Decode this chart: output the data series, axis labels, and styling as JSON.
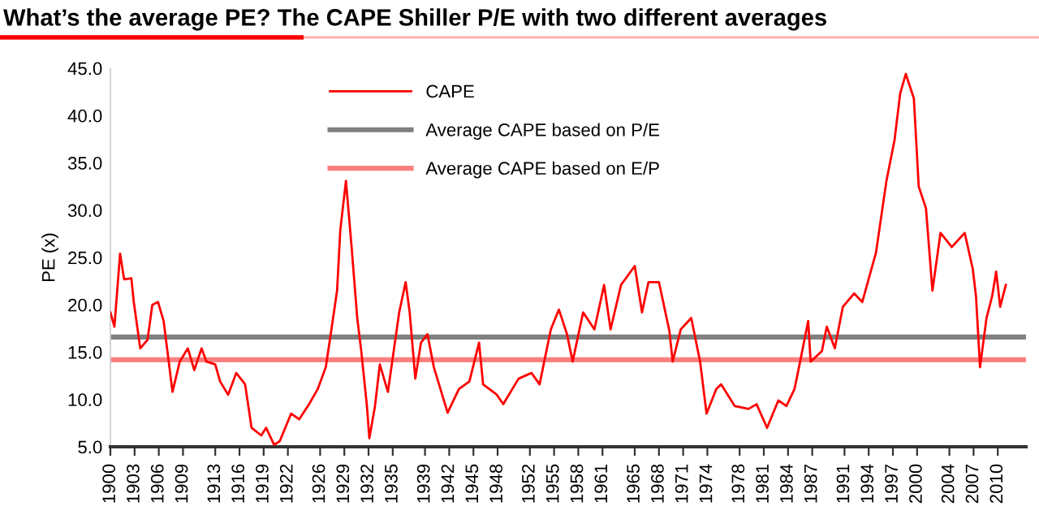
{
  "chart_data": {
    "type": "line",
    "title": "What’s the average PE? The CAPE Shiller P/E with two different averages",
    "ylabel": "PE (x)",
    "xlim": [
      1900,
      2013.5
    ],
    "xticks": [
      1900,
      1903,
      1906,
      1909,
      1913,
      1916,
      1919,
      1922,
      1926,
      1929,
      1932,
      1935,
      1939,
      1942,
      1945,
      1948,
      1952,
      1955,
      1958,
      1961,
      1965,
      1968,
      1971,
      1974,
      1978,
      1981,
      1984,
      1987,
      1991,
      1994,
      1997,
      2000,
      2004,
      2007,
      2010
    ],
    "ylim": [
      5,
      45
    ],
    "yticks": [
      {
        "value": 5,
        "label": "5.0"
      },
      {
        "value": 10,
        "label": "10.0"
      },
      {
        "value": 15,
        "label": "15.0"
      },
      {
        "value": 20,
        "label": "20.0"
      },
      {
        "value": 25,
        "label": "25.0"
      },
      {
        "value": 30,
        "label": "30.0"
      },
      {
        "value": 35,
        "label": "35.0"
      },
      {
        "value": 40,
        "label": "40.0"
      },
      {
        "value": 45,
        "label": "45.0"
      }
    ],
    "grid": false,
    "legend": "top",
    "series": [
      {
        "name": "CAPE",
        "color": "#ff0000",
        "x": [
          1900,
          1900.5,
          1901.2,
          1901.7,
          1902.6,
          1902.9,
          1903.7,
          1904.6,
          1905.2,
          1905.9,
          1906.6,
          1907.7,
          1908.6,
          1909.6,
          1910.4,
          1911.3,
          1911.9,
          1913.0,
          1913.6,
          1914.6,
          1915.6,
          1916.7,
          1917.5,
          1918.7,
          1919.3,
          1920.3,
          1921.0,
          1922.4,
          1923.4,
          1924.7,
          1925.7,
          1926.7,
          1927.4,
          1928.1,
          1928.5,
          1929.2,
          1929.9,
          1930.6,
          1931.1,
          1931.8,
          1932.1,
          1932.8,
          1933.4,
          1934.4,
          1935.8,
          1936.6,
          1937.1,
          1937.8,
          1938.5,
          1939.3,
          1940.1,
          1941.8,
          1943.2,
          1944.5,
          1945.7,
          1946.2,
          1947.9,
          1948.7,
          1950.6,
          1952.2,
          1953.2,
          1954.6,
          1955.6,
          1956.6,
          1957.3,
          1958.6,
          1960.0,
          1961.2,
          1962.0,
          1963.3,
          1965.0,
          1965.9,
          1966.7,
          1968.0,
          1969.3,
          1969.7,
          1970.7,
          1972.0,
          1973.1,
          1973.9,
          1975.1,
          1975.7,
          1977.4,
          1979.1,
          1980.1,
          1981.4,
          1982.8,
          1983.8,
          1984.8,
          1985.5,
          1986.5,
          1986.8,
          1988.2,
          1988.8,
          1989.8,
          1990.8,
          1992.2,
          1993.2,
          1994.9,
          1996.2,
          1997.2,
          1997.9,
          1998.6,
          1999.6,
          2000.2,
          2001.1,
          2001.9,
          2002.9,
          2004.3,
          2005.9,
          2006.9,
          2007.3,
          2007.8,
          2008.6,
          2009.3,
          2009.8,
          2010.3,
          2011.0
        ],
        "values": [
          19.2,
          17.7,
          25.4,
          22.7,
          22.8,
          20.3,
          15.4,
          16.3,
          20.0,
          20.3,
          18.3,
          10.8,
          14.0,
          15.4,
          13.1,
          15.4,
          14.0,
          13.7,
          11.9,
          10.5,
          12.8,
          11.6,
          7.0,
          6.2,
          7.0,
          5.2,
          5.6,
          8.5,
          7.9,
          9.6,
          11.1,
          13.4,
          17.4,
          21.5,
          27.9,
          33.1,
          26.1,
          18.6,
          15.1,
          9.3,
          5.9,
          9.3,
          13.7,
          10.8,
          19.2,
          22.4,
          19.2,
          12.2,
          16.0,
          16.9,
          13.4,
          8.6,
          11.1,
          11.9,
          16.0,
          11.6,
          10.5,
          9.5,
          12.2,
          12.8,
          11.6,
          17.4,
          19.5,
          16.9,
          14.0,
          19.2,
          17.4,
          22.1,
          17.4,
          22.1,
          24.1,
          19.2,
          22.4,
          22.4,
          17.2,
          14.0,
          17.4,
          18.6,
          14.0,
          8.5,
          11.1,
          11.6,
          9.3,
          9.0,
          9.5,
          7.0,
          9.9,
          9.3,
          11.1,
          14.0,
          18.3,
          14.0,
          15.1,
          17.7,
          15.4,
          19.8,
          21.2,
          20.3,
          25.5,
          33.1,
          37.4,
          42.3,
          44.4,
          41.8,
          32.5,
          30.2,
          21.5,
          27.6,
          26.1,
          27.6,
          23.8,
          20.9,
          13.4,
          18.6,
          20.9,
          23.5,
          19.8,
          22.1
        ]
      },
      {
        "name": "Average CAPE based on P/E",
        "color": "#808080",
        "x": [
          1900,
          2013.5
        ],
        "values": [
          16.6,
          16.6
        ]
      },
      {
        "name": "Average CAPE based on E/P",
        "color": "#ff8080",
        "x": [
          1900,
          2013.5
        ],
        "values": [
          14.2,
          14.2
        ]
      }
    ]
  }
}
